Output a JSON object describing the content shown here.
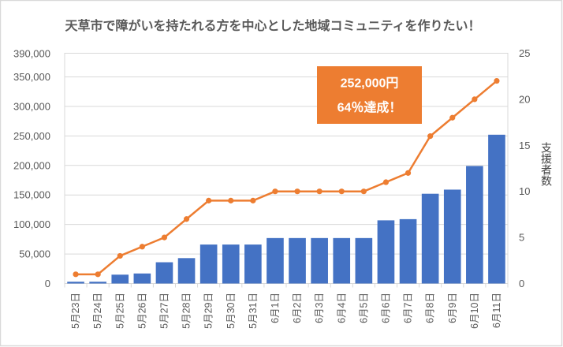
{
  "chart_data": {
    "type": "bar+line",
    "title": "天草市で障がいを持たれる方を中心とした地域コミュニティを作りたい！",
    "categories": [
      "5月23日",
      "5月24日",
      "5月25日",
      "5月26日",
      "5月27日",
      "5月28日",
      "5月29日",
      "5月30日",
      "5月31日",
      "6月1日",
      "6月2日",
      "6月3日",
      "6月4日",
      "6月5日",
      "6月6日",
      "6月7日",
      "6月8日",
      "6月9日",
      "6月10日",
      "6月11日"
    ],
    "series": [
      {
        "type": "bar",
        "axis": "left",
        "values": [
          3000,
          3000,
          15000,
          17000,
          36000,
          43000,
          66000,
          66000,
          66000,
          77000,
          77000,
          77000,
          77000,
          77000,
          107000,
          109000,
          152000,
          159000,
          199000,
          252000
        ]
      },
      {
        "type": "line",
        "axis": "right",
        "values": [
          1,
          1,
          3,
          4,
          5,
          7,
          9,
          9,
          9,
          10,
          10,
          10,
          10,
          10,
          11,
          12,
          16,
          18,
          20,
          22
        ]
      }
    ],
    "y_left": {
      "label": "",
      "range": [
        0,
        390000
      ],
      "top_label": "390,000",
      "ticks": [
        {
          "value": 0,
          "label": "0"
        },
        {
          "value": 50000,
          "label": "50,000"
        },
        {
          "value": 100000,
          "label": "100,000"
        },
        {
          "value": 150000,
          "label": "150,000"
        },
        {
          "value": 200000,
          "label": "200,000"
        },
        {
          "value": 250000,
          "label": "250,000"
        },
        {
          "value": 300000,
          "label": "300,000"
        },
        {
          "value": 350000,
          "label": "350,000"
        }
      ]
    },
    "y_right": {
      "label": "支援者数",
      "range": [
        0,
        25
      ],
      "ticks": [
        {
          "value": 0,
          "label": "0"
        },
        {
          "value": 5,
          "label": "5"
        },
        {
          "value": 10,
          "label": "10"
        },
        {
          "value": 15,
          "label": "15"
        },
        {
          "value": 20,
          "label": "20"
        },
        {
          "value": 25,
          "label": "25"
        }
      ]
    },
    "xlabel": "",
    "grid": true,
    "legend": "none",
    "annotation": {
      "lines": [
        "252,000円",
        "64％達成！"
      ]
    }
  },
  "colors": {
    "bar": "#4472C4",
    "line": "#ED7D31",
    "annotation_bg": "#ED7D31",
    "grid": "#D9D9D9",
    "axis_text": "#595959",
    "top_label": "#000000"
  }
}
